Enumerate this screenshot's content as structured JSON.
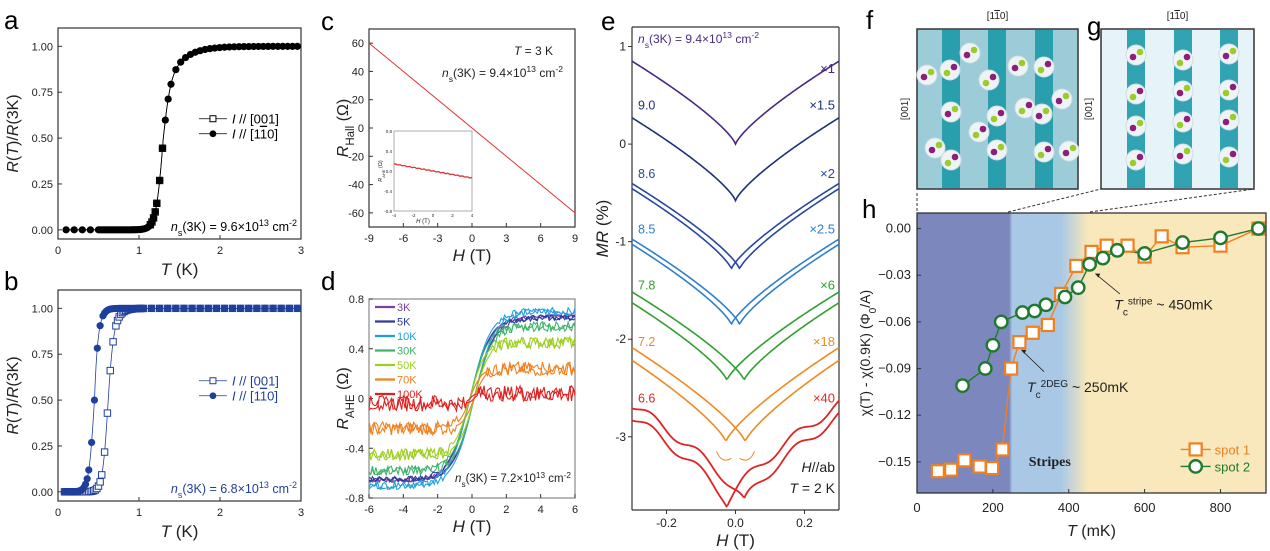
{
  "panel_labels": {
    "a": "a",
    "b": "b",
    "c": "c",
    "d": "d",
    "e": "e",
    "f": "f",
    "g": "g",
    "h": "h"
  },
  "chart_data": [
    {
      "id": "a",
      "type": "scatter",
      "xlabel": "T (K)",
      "ylabel": "R(T)/R(3K)",
      "xlim": [
        0,
        3
      ],
      "ylim": [
        -0.05,
        1.1
      ],
      "xticks": [
        0,
        1,
        2,
        3
      ],
      "yticks": [
        0.0,
        0.25,
        0.5,
        0.75,
        1.0
      ],
      "ytick_labels": [
        "0.00",
        "0.25",
        "0.50",
        "0.75",
        "1.00"
      ],
      "color": "#000000",
      "legend": {
        "position": "center-right",
        "entries": [
          "I // [001]",
          "I // [1-10]"
        ]
      },
      "annotation": "n_s(3K) = 9.6×10^13 cm^-2",
      "series": [
        {
          "name": "I // [001]",
          "marker": "open-square",
          "tc_mid": 1.3,
          "width": 0.045,
          "tail": 0.55,
          "x": [
            1.2,
            1.23,
            1.25,
            1.27,
            1.29
          ]
        },
        {
          "name": "I // [1-10]",
          "marker": "filled-circle",
          "tc_mid": 1.3,
          "width": 0.045,
          "tail": 0.55,
          "x": [
            0.1,
            0.2,
            0.3,
            0.4
          ]
        }
      ]
    },
    {
      "id": "b",
      "type": "scatter",
      "xlabel": "T (K)",
      "ylabel": "R(T)/R(3K)",
      "xlim": [
        0,
        3
      ],
      "ylim": [
        -0.05,
        1.1
      ],
      "xticks": [
        0,
        1,
        2,
        3
      ],
      "yticks": [
        0.0,
        0.25,
        0.5,
        0.75,
        1.0
      ],
      "ytick_labels": [
        "0.00",
        "0.25",
        "0.50",
        "0.75",
        "1.00"
      ],
      "color": "#1f3f9c",
      "legend": {
        "position": "center-right",
        "entries": [
          "I // [001]",
          "I // [1-10]"
        ]
      },
      "annotation": "n_s(3K) = 6.8×10^13 cm^-2",
      "series": [
        {
          "name": "I // [001]",
          "marker": "open-square",
          "tc_mid": 0.62,
          "width": 0.035,
          "tail": 0.2
        },
        {
          "name": "I // [1-10]",
          "marker": "filled-circle",
          "tc_mid": 0.45,
          "width": 0.035,
          "tail": 0.12
        }
      ]
    },
    {
      "id": "c",
      "type": "line",
      "xlabel": "H (T)",
      "ylabel": "R_Hall (Ω)",
      "xlim": [
        -9,
        9
      ],
      "ylim": [
        -70,
        70
      ],
      "xticks": [
        -9,
        -6,
        -3,
        0,
        3,
        6,
        9
      ],
      "yticks": [
        -60,
        -40,
        -20,
        0,
        20,
        40,
        60
      ],
      "color": "#e03030",
      "annotations": [
        "T = 3 K",
        "n_s(3K) = 9.4×10^13 cm^-2"
      ],
      "series": [
        {
          "name": "R_Hall",
          "x": [
            -9,
            9
          ],
          "y": [
            60,
            -60
          ]
        }
      ],
      "inset": {
        "xlabel": "H (T)",
        "ylabel": "R_AHE (Ω)",
        "xlim": [
          -4,
          4
        ],
        "ylim": [
          -0.8,
          0.8
        ],
        "xticks": [
          -4,
          -2,
          0,
          2,
          4
        ],
        "yticks": [
          -0.8,
          -0.4,
          0.0,
          0.4,
          0.8
        ],
        "series": [
          {
            "x": [
              -4,
              0,
              4
            ],
            "y": [
              0.14,
              0.0,
              -0.14
            ]
          }
        ]
      }
    },
    {
      "id": "d",
      "type": "line",
      "xlabel": "H (T)",
      "ylabel": "R_AHE (Ω)",
      "xlim": [
        -6,
        6
      ],
      "ylim": [
        -0.8,
        0.8
      ],
      "xticks": [
        -6,
        -4,
        -2,
        0,
        2,
        4,
        6
      ],
      "yticks": [
        -0.8,
        -0.4,
        0.0,
        0.4,
        0.8
      ],
      "annotation": "n_s(3K) = 7.2×10^13 cm^-2",
      "legend": {
        "position": "top-left"
      },
      "series": [
        {
          "name": "3K",
          "color": "#7b3fa6",
          "saturation": 0.66,
          "hsat": 2.2
        },
        {
          "name": "5K",
          "color": "#2d3aa0",
          "saturation": 0.65,
          "hsat": 2.2
        },
        {
          "name": "10K",
          "color": "#1ea0e0",
          "saturation": 0.7,
          "hsat": 2.2
        },
        {
          "name": "30K",
          "color": "#3fb36a",
          "saturation": 0.58,
          "hsat": 1.9
        },
        {
          "name": "50K",
          "color": "#9ccf1f",
          "saturation": 0.45,
          "hsat": 1.6
        },
        {
          "name": "70K",
          "color": "#f08020",
          "saturation": 0.24,
          "hsat": 1.2
        },
        {
          "name": "100K",
          "color": "#e02020",
          "saturation": 0.04,
          "hsat": 0.5
        }
      ]
    },
    {
      "id": "e",
      "type": "line",
      "xlabel": "H (T)",
      "ylabel": "MR (%)",
      "xlim": [
        -0.3,
        0.3
      ],
      "ylim": [
        -3.75,
        1.2
      ],
      "xticks": [
        -0.2,
        0.0,
        0.2
      ],
      "xtick_labels": [
        "-0.2",
        "0.0",
        "0.2"
      ],
      "yticks": [
        -3,
        -2,
        -1,
        0,
        1
      ],
      "annotations": [
        "H//ab",
        "T = 2 K"
      ],
      "series": [
        {
          "label": "n_s(3K) = 9.4×10^13 cm^-2",
          "scale": "×1",
          "color": "#4a2a80",
          "offset": 0.0,
          "depth": 0.85,
          "split": 0.0
        },
        {
          "label": "9.0",
          "scale": "×1.5",
          "color": "#1f2f7a",
          "offset": -0.58,
          "depth": 0.85,
          "split": 0.0
        },
        {
          "label": "8.6",
          "scale": "×2",
          "color": "#2847a0",
          "offset": -1.28,
          "depth": 0.85,
          "split": 0.012
        },
        {
          "label": "8.5",
          "scale": "×2.5",
          "color": "#2f7fcc",
          "offset": -1.85,
          "depth": 0.85,
          "split": 0.012
        },
        {
          "label": "7.8",
          "scale": "×6",
          "color": "#2fa030",
          "offset": -2.42,
          "depth": 0.85,
          "split": 0.025
        },
        {
          "label": "7.2",
          "scale": "×18",
          "color": "#f08a20",
          "offset": -3.05,
          "depth": 0.9,
          "split": 0.028
        },
        {
          "label": "6.6",
          "scale": "×40",
          "color": "#e02424",
          "offset": -3.68,
          "depth": 0.95,
          "split": 0.025
        }
      ]
    },
    {
      "id": "h",
      "type": "scatter",
      "xlabel": "T (mK)",
      "ylabel": "χ(T) - χ(0.9K) (Φ0/A)",
      "xlim": [
        0,
        920
      ],
      "ylim": [
        -0.17,
        0.01
      ],
      "xticks": [
        0,
        200,
        400,
        600,
        800
      ],
      "yticks": [
        0.0,
        -0.03,
        -0.06,
        -0.09,
        -0.12,
        -0.15
      ],
      "ytick_labels": [
        "0.00",
        "−0.03",
        "−0.06",
        "−0.09",
        "−0.12",
        "−0.15"
      ],
      "regions": [
        {
          "from": 0,
          "to": 245,
          "color": "#7b87bd"
        },
        {
          "from": 245,
          "to": 450,
          "color": "#a9c8e6",
          "label": "Stripes"
        },
        {
          "from": 450,
          "to": 920,
          "color": "#f8e8bb"
        }
      ],
      "annotations": [
        {
          "text": "Tc^2DEG ~ 250mK",
          "target": [
            265,
            -0.074
          ]
        },
        {
          "text": "Tc^stripe ~ 450mK",
          "target": [
            462,
            -0.024
          ]
        }
      ],
      "legend": {
        "position": "bottom-right",
        "entries": [
          "spot 1",
          "spot 2"
        ]
      },
      "series": [
        {
          "name": "spot 1",
          "marker": "open-square",
          "color": "#f07f1f",
          "x": [
            55,
            90,
            125,
            165,
            198,
            225,
            248,
            270,
            305,
            345,
            380,
            420,
            460,
            500,
            555,
            600,
            645,
            700,
            800,
            900
          ],
          "y": [
            -0.156,
            -0.155,
            -0.149,
            -0.153,
            -0.154,
            -0.142,
            -0.09,
            -0.073,
            -0.067,
            -0.062,
            -0.042,
            -0.024,
            -0.015,
            -0.011,
            -0.011,
            -0.018,
            -0.005,
            -0.012,
            -0.011,
            0.0
          ]
        },
        {
          "name": "spot 2",
          "marker": "open-circle",
          "color": "#1f7a2f",
          "x": [
            120,
            180,
            200,
            222,
            278,
            310,
            340,
            390,
            425,
            455,
            490,
            528,
            600,
            700,
            800,
            900
          ],
          "y": [
            -0.101,
            -0.09,
            -0.075,
            -0.06,
            -0.054,
            -0.053,
            -0.049,
            -0.044,
            -0.038,
            -0.023,
            -0.019,
            -0.014,
            -0.016,
            -0.009,
            -0.006,
            0.0
          ]
        }
      ]
    }
  ],
  "schematics": {
    "f": {
      "top_label": "[1-10]",
      "side_label": "[001]",
      "background": "#9cccd8",
      "stripe_color": "#1d9aaa"
    },
    "g": {
      "top_label": "[1-10]",
      "side_label": "[001]",
      "background": "#e6f3f9",
      "stripe_color": "#1d9aaa"
    }
  }
}
